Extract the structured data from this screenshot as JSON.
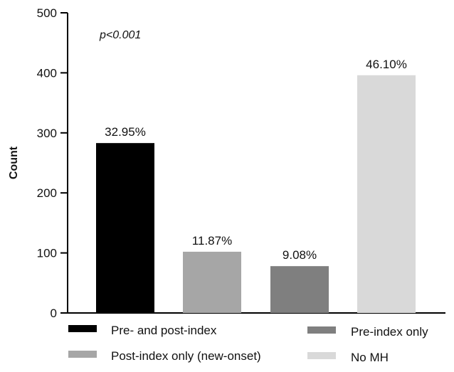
{
  "chart_data": {
    "type": "bar",
    "categories": [
      "Pre- and post-index",
      "Post-index only (new-onset)",
      "Pre-index only",
      "No MH"
    ],
    "values": [
      283,
      102,
      78,
      396
    ],
    "data_labels": [
      "32.95%",
      "11.87%",
      "9.08%",
      "46.10%"
    ],
    "colors": [
      "#000000",
      "#a6a6a6",
      "#7f7f7f",
      "#d9d9d9"
    ],
    "ylabel": "Count",
    "xlabel": "",
    "ylim": [
      0,
      500
    ],
    "yticks": [
      0,
      100,
      200,
      300,
      400,
      500
    ],
    "annotation": "p<0.001",
    "grid": false,
    "legend": {
      "placement": "bottom",
      "entries": [
        "Pre- and post-index",
        "Pre-index only",
        "Post-index only (new-onset)",
        "No MH"
      ],
      "colors": [
        "#000000",
        "#7f7f7f",
        "#a6a6a6",
        "#d9d9d9"
      ]
    }
  }
}
